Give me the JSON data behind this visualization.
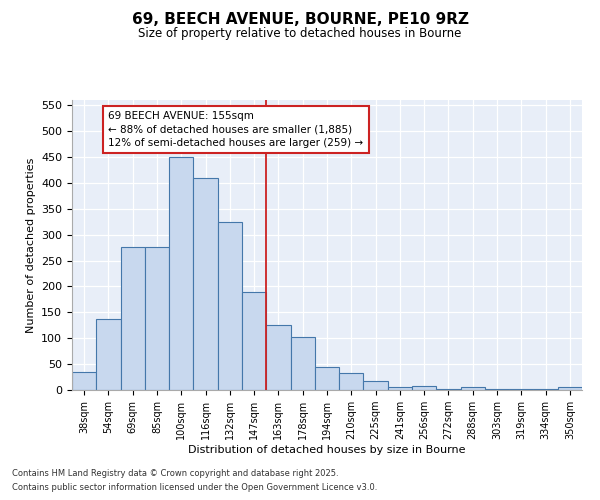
{
  "title": "69, BEECH AVENUE, BOURNE, PE10 9RZ",
  "subtitle": "Size of property relative to detached houses in Bourne",
  "xlabel": "Distribution of detached houses by size in Bourne",
  "ylabel": "Number of detached properties",
  "categories": [
    "38sqm",
    "54sqm",
    "69sqm",
    "85sqm",
    "100sqm",
    "116sqm",
    "132sqm",
    "147sqm",
    "163sqm",
    "178sqm",
    "194sqm",
    "210sqm",
    "225sqm",
    "241sqm",
    "256sqm",
    "272sqm",
    "288sqm",
    "303sqm",
    "319sqm",
    "334sqm",
    "350sqm"
  ],
  "values": [
    35,
    137,
    276,
    276,
    450,
    410,
    325,
    190,
    125,
    102,
    45,
    33,
    18,
    6,
    8,
    2,
    5,
    2,
    2,
    2,
    5
  ],
  "bar_color": "#c8d8ee",
  "bar_edge_color": "#4477aa",
  "vertical_line_color": "#cc2222",
  "annotation_title": "69 BEECH AVENUE: 155sqm",
  "annotation_line2": "← 88% of detached houses are smaller (1,885)",
  "annotation_line3": "12% of semi-detached houses are larger (259) →",
  "ylim": [
    0,
    560
  ],
  "yticks": [
    0,
    50,
    100,
    150,
    200,
    250,
    300,
    350,
    400,
    450,
    500,
    550
  ],
  "background_color": "#e8eef8",
  "fig_background": "#ffffff",
  "grid_color": "#ffffff",
  "footer_line1": "Contains HM Land Registry data © Crown copyright and database right 2025.",
  "footer_line2": "Contains public sector information licensed under the Open Government Licence v3.0."
}
